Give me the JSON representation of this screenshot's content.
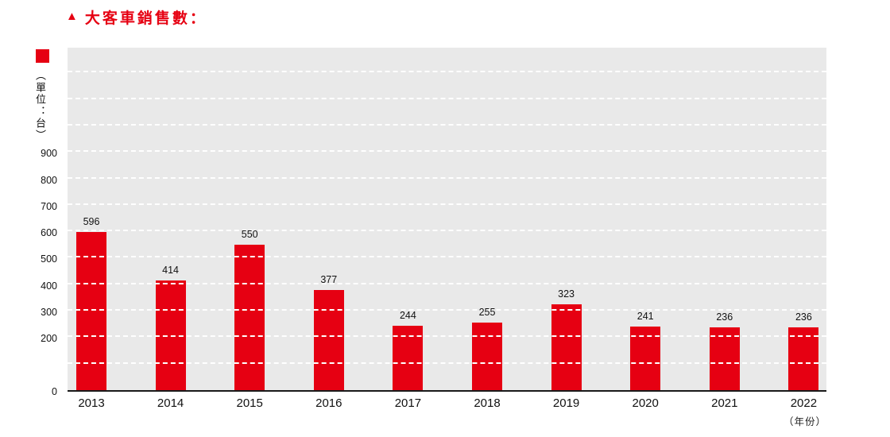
{
  "header": {
    "triangle_icon": "▲",
    "title": "大客車銷售數："
  },
  "colors": {
    "accent": "#e60012",
    "plot_bg": "#e9e9e9",
    "gridline": "#ffffff"
  },
  "chart_data": {
    "type": "bar",
    "title": "大客車銷售數",
    "unit_label": "（單位：台）",
    "xaxis_note": "（年份）",
    "categories": [
      "2013",
      "2014",
      "2015",
      "2016",
      "2017",
      "2018",
      "2019",
      "2020",
      "2021",
      "2022"
    ],
    "values": [
      596,
      414,
      550,
      377,
      244,
      255,
      323,
      241,
      236,
      236
    ],
    "bar_color": "#e60012",
    "ylim": [
      0,
      1300
    ],
    "ytick_labels": [
      900,
      800,
      700,
      600,
      500,
      400,
      300,
      200,
      0
    ],
    "gridline_step": 100,
    "grid": true,
    "legend_position": "top-left"
  }
}
